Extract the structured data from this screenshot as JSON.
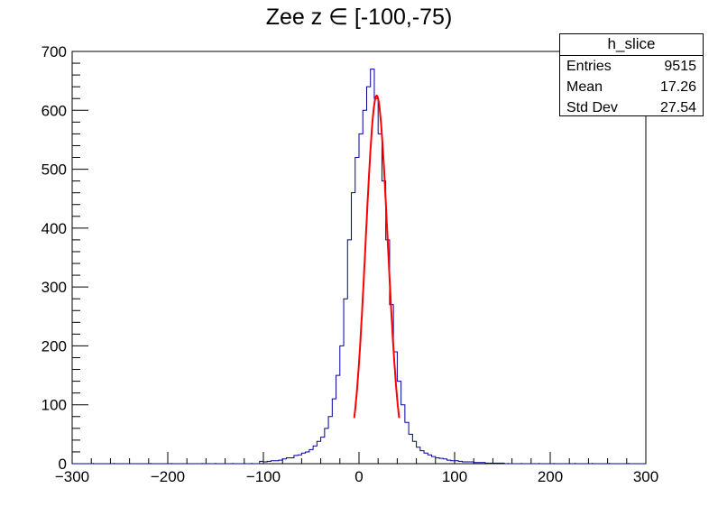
{
  "chart_data": {
    "type": "histogram",
    "title": "Zee z ∈ [-100,-75)",
    "xlabel": "",
    "ylabel": "",
    "xlim": [
      -300,
      300
    ],
    "ylim": [
      0,
      700
    ],
    "x_ticks": [
      "−300",
      "−200",
      "−100",
      "0",
      "100",
      "200",
      "300"
    ],
    "x_tick_values": [
      -300,
      -200,
      -100,
      0,
      100,
      200,
      300
    ],
    "y_ticks": [
      "0",
      "100",
      "200",
      "300",
      "400",
      "500",
      "600",
      "700"
    ],
    "y_tick_values": [
      0,
      100,
      200,
      300,
      400,
      500,
      600,
      700
    ],
    "bin_width": 2,
    "series": [
      {
        "kind": "histogram",
        "color": "#000099",
        "bins_x": [
          -104,
          -100,
          -96,
          -92,
          -88,
          -84,
          -80,
          -76,
          -72,
          -68,
          -64,
          -60,
          -56,
          -52,
          -48,
          -44,
          -40,
          -36,
          -32,
          -28,
          -24,
          -20,
          -16,
          -12,
          -8,
          -4,
          0,
          4,
          8,
          12,
          16,
          20,
          24,
          28,
          32,
          36,
          40,
          44,
          48,
          52,
          56,
          60,
          64,
          68,
          72,
          76,
          80,
          84,
          88,
          92,
          96,
          100,
          104,
          108,
          112,
          116,
          120,
          124,
          128,
          132,
          136,
          140,
          144,
          148
        ],
        "bins_y": [
          4,
          3,
          4,
          5,
          5,
          6,
          8,
          10,
          10,
          14,
          15,
          18,
          20,
          24,
          30,
          38,
          45,
          60,
          80,
          110,
          150,
          200,
          280,
          380,
          460,
          520,
          560,
          600,
          640,
          670,
          620,
          560,
          480,
          380,
          270,
          190,
          140,
          100,
          70,
          50,
          38,
          28,
          22,
          18,
          15,
          12,
          10,
          9,
          8,
          6,
          5,
          5,
          4,
          3,
          3,
          3,
          2,
          2,
          2,
          1,
          1,
          1,
          1,
          1
        ]
      },
      {
        "kind": "fit",
        "color": "#ff0000",
        "function": "gaussian",
        "range": [
          -5,
          42
        ],
        "peak": 625,
        "mean": 18.5,
        "sigma": 11.5
      }
    ]
  },
  "stats": {
    "name": "h_slice",
    "rows": [
      {
        "label": "Entries",
        "value": "9515"
      },
      {
        "label": "Mean",
        "value": "17.26"
      },
      {
        "label": "Std Dev",
        "value": "27.54"
      }
    ]
  }
}
